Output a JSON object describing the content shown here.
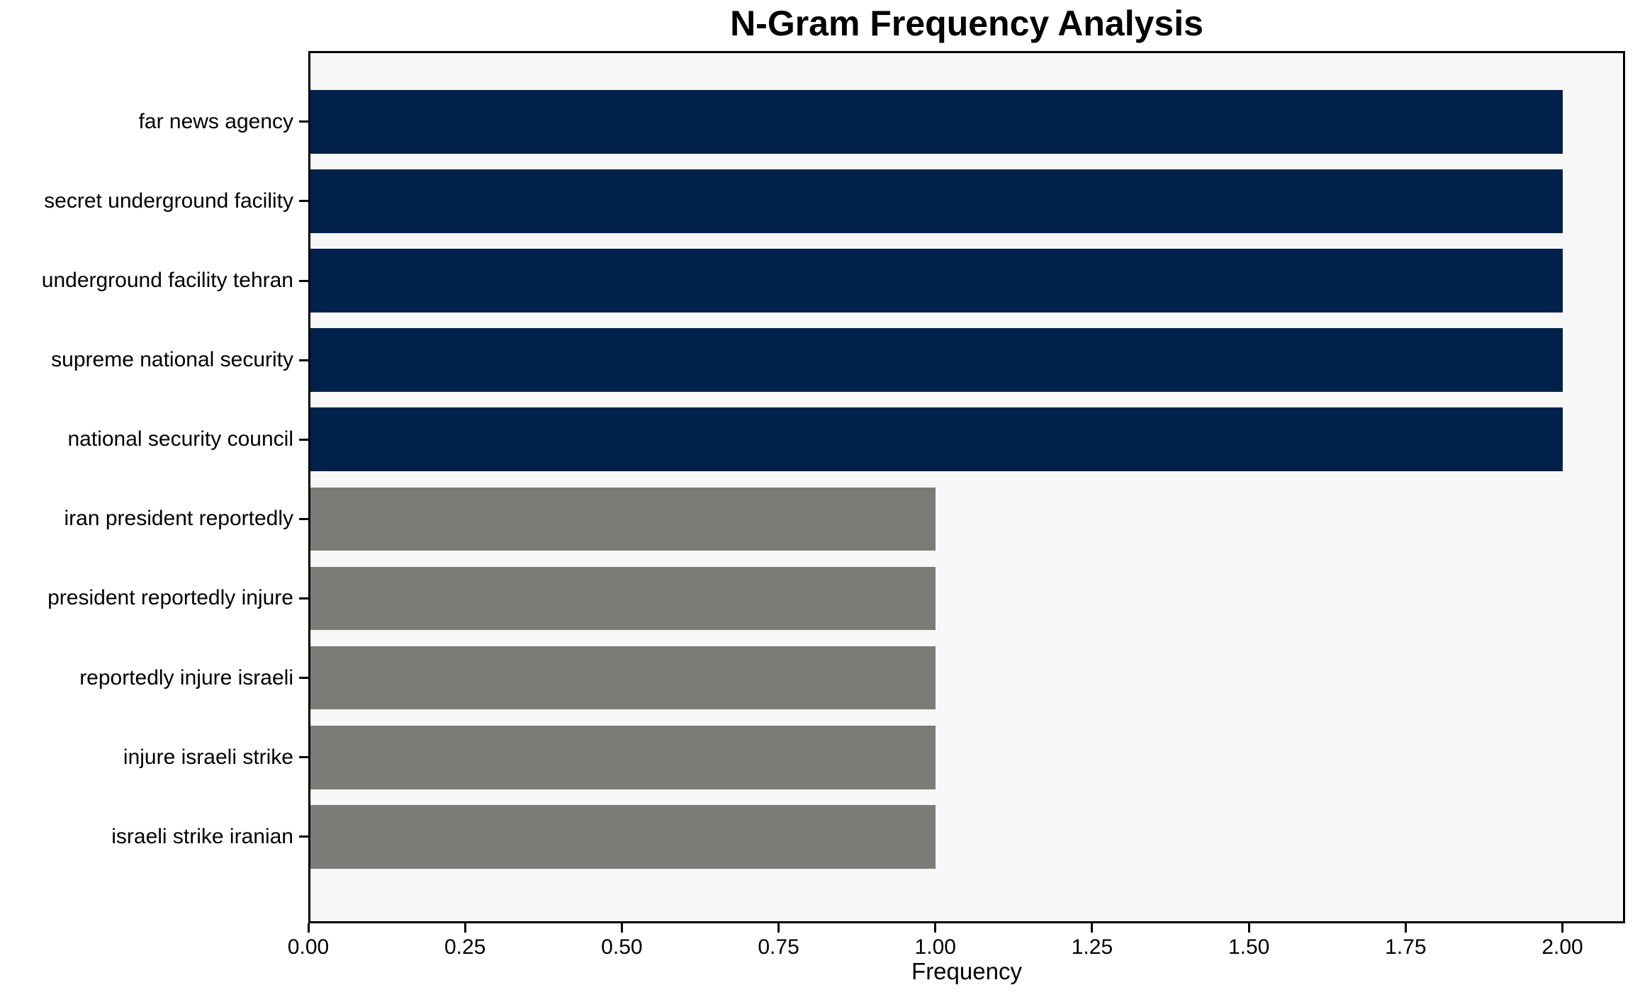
{
  "chart_data": {
    "type": "bar",
    "orientation": "horizontal",
    "title": "N-Gram Frequency Analysis",
    "xlabel": "Frequency",
    "ylabel": "",
    "categories": [
      "far news agency",
      "secret underground facility",
      "underground facility tehran",
      "supreme national security",
      "national security council",
      "iran president reportedly",
      "president reportedly injure",
      "reportedly injure israeli",
      "injure israeli strike",
      "israeli strike iranian"
    ],
    "values": [
      2,
      2,
      2,
      2,
      2,
      1,
      1,
      1,
      1,
      1
    ],
    "bar_colors": [
      "#00224A",
      "#00224A",
      "#00224A",
      "#00224A",
      "#00224A",
      "#7B7B77",
      "#7B7B77",
      "#7B7B77",
      "#7B7B77",
      "#7B7B77"
    ],
    "xlim": [
      0,
      2.1
    ],
    "x_ticks": [
      0,
      0.25,
      0.5,
      0.75,
      1,
      1.25,
      1.5,
      1.75,
      2
    ],
    "x_tick_labels": [
      "0.00",
      "0.25",
      "0.50",
      "0.75",
      "1.00",
      "1.25",
      "1.50",
      "1.75",
      "2.00"
    ],
    "grid": false,
    "legend": false,
    "colors": {
      "bar_high": "#00224A",
      "bar_low": "#7B7B77",
      "plot_background": "#F7F7F7",
      "figure_background": "#FFFFFF",
      "spine": "#000000",
      "text": "#000000"
    }
  }
}
